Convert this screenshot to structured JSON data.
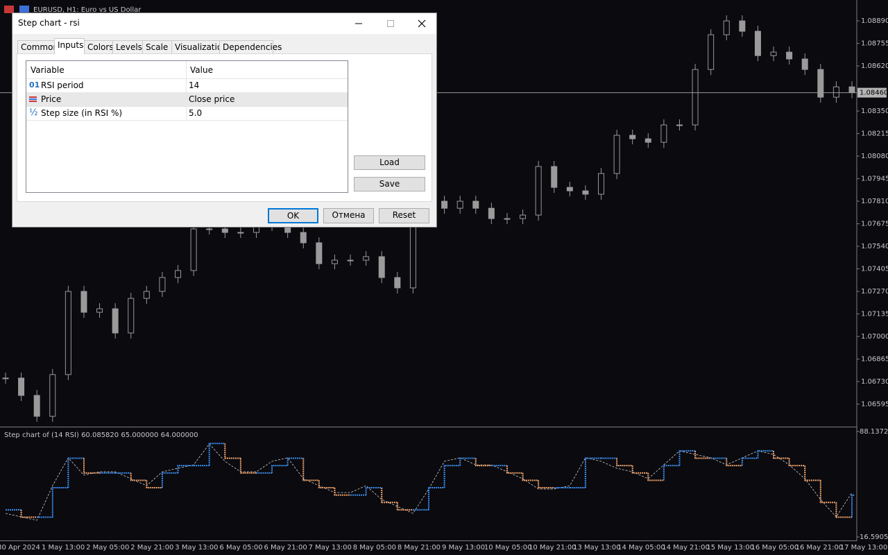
{
  "window": {
    "symbol_title": "EURUSD, H1: Euro vs US Dollar"
  },
  "price_chart": {
    "type": "candlestick",
    "values": [
      1.06751,
      1.06647,
      1.06522,
      1.06772,
      1.0727,
      1.07145,
      1.07166,
      1.07021,
      1.07228,
      1.0727,
      1.07353,
      1.07395,
      1.07644,
      1.07644,
      1.07623,
      1.07623,
      1.07685,
      1.07665,
      1.07623,
      1.07561,
      1.07436,
      1.07457,
      1.07457,
      1.07478,
      1.07353,
      1.07291,
      1.07768,
      1.0781,
      1.07768,
      1.0781,
      1.07768,
      1.07706,
      1.07706,
      1.07727,
      1.08018,
      1.07893,
      1.07872,
      1.07852,
      1.07976,
      1.08205,
      1.08184,
      1.08163,
      1.08267,
      1.08267,
      1.08599,
      1.08807,
      1.0889,
      1.08828,
      1.08682,
      1.08703,
      1.08662,
      1.08599,
      1.08433,
      1.08495,
      1.0846
    ],
    "ylim": [
      1.0646,
      1.09015
    ],
    "yticks": [
      {
        "value": 1.0889,
        "label": "1.08890"
      },
      {
        "value": 1.08755,
        "label": "1.08755"
      },
      {
        "value": 1.0862,
        "label": "1.08620"
      },
      {
        "value": 1.0835,
        "label": "1.08350"
      },
      {
        "value": 1.08215,
        "label": "1.08215"
      },
      {
        "value": 1.0808,
        "label": "1.08080"
      },
      {
        "value": 1.07945,
        "label": "1.07945"
      },
      {
        "value": 1.0781,
        "label": "1.07810"
      },
      {
        "value": 1.07675,
        "label": "1.07675"
      },
      {
        "value": 1.0754,
        "label": "1.07540"
      },
      {
        "value": 1.07405,
        "label": "1.07405"
      },
      {
        "value": 1.0727,
        "label": "1.07270"
      },
      {
        "value": 1.07135,
        "label": "1.07135"
      },
      {
        "value": 1.07,
        "label": "1.07000"
      },
      {
        "value": 1.06865,
        "label": "1.06865"
      },
      {
        "value": 1.0673,
        "label": "1.06730"
      },
      {
        "value": 1.06595,
        "label": "1.06595"
      }
    ],
    "current_price": {
      "value": 1.0846,
      "label": "1.08460"
    }
  },
  "indicator": {
    "type": "step",
    "title": "Step chart of (14 RSI) 60.085820 65.000000 64.000000",
    "rsi": [
      32.6,
      30.2,
      27.9,
      51.4,
      70.3,
      58.5,
      60.8,
      60.8,
      56.1,
      51.4,
      60.8,
      63.2,
      65.5,
      79.7,
      67.9,
      60.8,
      60.8,
      67.9,
      70.3,
      56.1,
      51.4,
      46.7,
      46.7,
      51.4,
      42.0,
      37.3,
      32.6,
      49.1,
      67.9,
      70.3,
      65.5,
      65.5,
      60.8,
      56.1,
      49.1,
      49.1,
      51.4,
      70.3,
      67.9,
      63.2,
      60.8,
      56.1,
      65.5,
      75.0,
      72.6,
      70.3,
      65.5,
      70.3,
      75.0,
      72.6,
      65.5,
      56.1,
      42.0,
      30.2,
      46.7
    ],
    "step": [
      35,
      30,
      30,
      50,
      70,
      60,
      60,
      60,
      55,
      50,
      60,
      65,
      65,
      80,
      70,
      60,
      60,
      65,
      70,
      55,
      50,
      45,
      45,
      50,
      40,
      35,
      35,
      50,
      65,
      70,
      65,
      65,
      60,
      55,
      50,
      50,
      50,
      70,
      70,
      65,
      60,
      55,
      65,
      75,
      70,
      70,
      65,
      70,
      75,
      70,
      65,
      55,
      40,
      30,
      45
    ],
    "ylim": [
      16.590544,
      88.137292
    ],
    "yticks": [
      88.137292,
      16.590544
    ],
    "up_color": "#3d8ef0",
    "down_color": "#f4a46a"
  },
  "time_axis": [
    "30 Apr 2024",
    "1 May 13:00",
    "2 May 05:00",
    "2 May 21:00",
    "3 May 13:00",
    "6 May 05:00",
    "6 May 21:00",
    "7 May 13:00",
    "8 May 05:00",
    "8 May 21:00",
    "9 May 13:00",
    "10 May 05:00",
    "10 May 21:00",
    "13 May 13:00",
    "14 May 05:00",
    "14 May 21:00",
    "15 May 13:00",
    "16 May 05:00",
    "16 May 21:00",
    "17 May 13:00"
  ],
  "dialog": {
    "title": "Step chart - rsi",
    "tabs": [
      "Common",
      "Inputs",
      "Colors",
      "Levels",
      "Scale",
      "Visualization",
      "Dependencies"
    ],
    "table": {
      "header": [
        "Variable",
        "Value"
      ],
      "rows": [
        {
          "icon": "01",
          "name": "RSI period",
          "value": "14"
        },
        {
          "name": "Price",
          "value": "Close price"
        },
        {
          "icon": "½",
          "name": "Step size (in RSI %)",
          "value": "5.0"
        }
      ]
    },
    "buttons": {
      "load": "Load",
      "save": "Save",
      "ok": "OK",
      "cancel": "Отмена",
      "reset": "Reset"
    }
  }
}
